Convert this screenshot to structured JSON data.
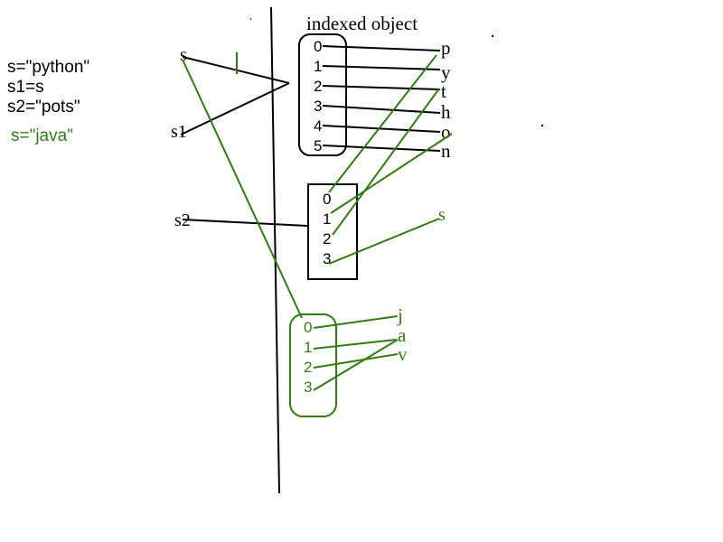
{
  "colors": {
    "black": "#000000",
    "green": "#2e7d12"
  },
  "code": {
    "line1": "s=\"python\"",
    "line2": "s1=s",
    "line3": "s2=\"pots\"",
    "line4": "s=\"java\""
  },
  "title": "indexed object",
  "refs": {
    "s_top": "s",
    "s1": "s1",
    "s2": "s2"
  },
  "python_box": {
    "indices": [
      "0",
      "1",
      "2",
      "3",
      "4",
      "5"
    ],
    "chars": [
      "p",
      "y",
      "t",
      "h",
      "o",
      "n"
    ]
  },
  "pots_box": {
    "indices": [
      "0",
      "1",
      "2",
      "3"
    ],
    "extra_char": "s"
  },
  "java_box": {
    "indices": [
      "0",
      "1",
      "2",
      "3"
    ],
    "chars": [
      "j",
      "a",
      "v"
    ]
  }
}
